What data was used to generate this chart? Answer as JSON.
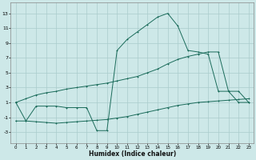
{
  "xlabel": "Humidex (Indice chaleur)",
  "xlim": [
    -0.5,
    23.5
  ],
  "ylim": [
    -4.5,
    14.5
  ],
  "yticks": [
    -3,
    -1,
    1,
    3,
    5,
    7,
    9,
    11,
    13
  ],
  "xticks": [
    0,
    1,
    2,
    3,
    4,
    5,
    6,
    7,
    8,
    9,
    10,
    11,
    12,
    13,
    14,
    15,
    16,
    17,
    18,
    19,
    20,
    21,
    22,
    23
  ],
  "background_color": "#cde8e8",
  "grid_color": "#aacccc",
  "line_color": "#1a6b5a",
  "line1_x": [
    0,
    1,
    2,
    3,
    4,
    5,
    6,
    7,
    8,
    9,
    10,
    11,
    12,
    13,
    14,
    15,
    16,
    17,
    18,
    19,
    20,
    21,
    22,
    23
  ],
  "line1_y": [
    1,
    -1.5,
    0.5,
    0.5,
    0.5,
    0.3,
    0.3,
    0.3,
    -2.8,
    -2.8,
    8.0,
    9.5,
    10.5,
    11.5,
    12.5,
    13.0,
    11.3,
    8.0,
    7.8,
    7.5,
    2.5,
    2.5,
    1.0,
    1.0
  ],
  "line2_x": [
    0,
    1,
    2,
    3,
    4,
    5,
    6,
    7,
    8,
    9,
    10,
    11,
    12,
    13,
    14,
    15,
    16,
    17,
    18,
    19,
    20,
    21,
    22,
    23
  ],
  "line2_y": [
    1.0,
    1.5,
    2.0,
    2.3,
    2.5,
    2.8,
    3.0,
    3.2,
    3.4,
    3.6,
    3.9,
    4.2,
    4.5,
    5.0,
    5.5,
    6.2,
    6.8,
    7.2,
    7.5,
    7.8,
    7.8,
    2.5,
    2.5,
    1.0
  ],
  "line3_x": [
    0,
    1,
    2,
    3,
    4,
    5,
    6,
    7,
    8,
    9,
    10,
    11,
    12,
    13,
    14,
    15,
    16,
    17,
    18,
    19,
    20,
    21,
    22,
    23
  ],
  "line3_y": [
    -1.5,
    -1.5,
    -1.6,
    -1.7,
    -1.8,
    -1.7,
    -1.6,
    -1.5,
    -1.4,
    -1.3,
    -1.1,
    -0.9,
    -0.6,
    -0.3,
    0.0,
    0.3,
    0.6,
    0.8,
    1.0,
    1.1,
    1.2,
    1.3,
    1.4,
    1.5
  ]
}
